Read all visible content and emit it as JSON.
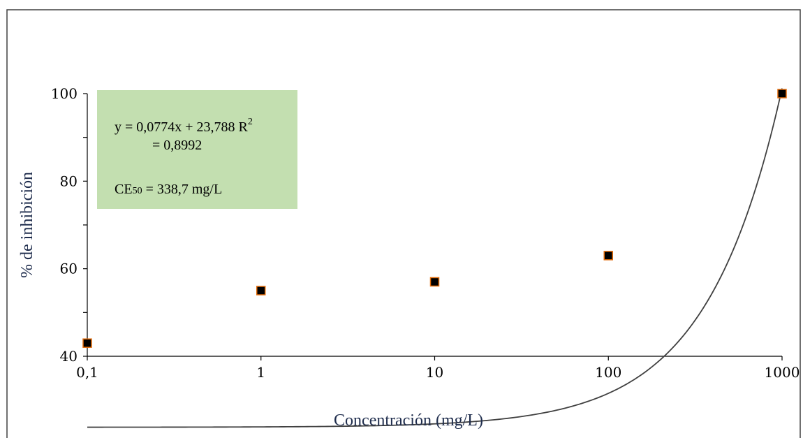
{
  "chart_data": {
    "type": "scatter",
    "title": "",
    "xlabel": "Concentración (mg/L)",
    "ylabel": "% de inhibición",
    "x_scale": "log",
    "xlim": [
      0.1,
      1000
    ],
    "ylim": [
      40,
      100
    ],
    "x_ticks": [
      0.1,
      1,
      10,
      100,
      1000
    ],
    "x_tick_labels": [
      "0,1",
      "1",
      "10",
      "100",
      "1000"
    ],
    "y_ticks": [
      40,
      60,
      80,
      100
    ],
    "y_tick_labels": [
      "40",
      "60",
      "80",
      "100"
    ],
    "y_minor_ticks": [
      50,
      70,
      90
    ],
    "grid": false,
    "series": [
      {
        "type": "scatter",
        "marker": "square",
        "color": "#000000",
        "marker_edge_color": "#e36c0a",
        "x": [
          0.1,
          1,
          10,
          100,
          1000
        ],
        "y": [
          43,
          55,
          57,
          63,
          100
        ]
      },
      {
        "type": "line",
        "color": "#404040",
        "fit": "linear",
        "slope": 0.0774,
        "intercept": 23.788
      }
    ],
    "annotation": {
      "background": "#c3dfb0",
      "equation_line1": "y = 0,0774x + 23,788 R",
      "equation_sup": "2",
      "equation_line2": "= 0,8992",
      "ce_prefix": "CE",
      "ce_sub": "50",
      "ce_value": " = 338,7 mg/L"
    }
  }
}
